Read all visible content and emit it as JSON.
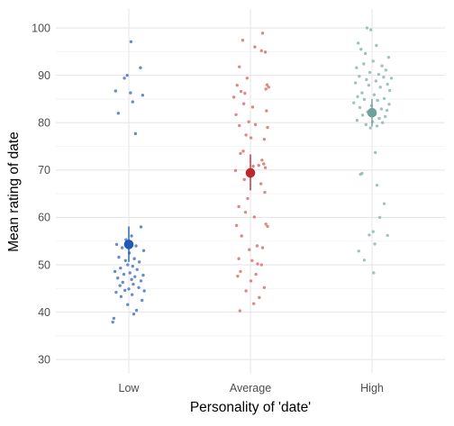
{
  "chart_data": {
    "type": "scatter",
    "xlabel": "Personality of 'date'",
    "ylabel": "Mean rating of date",
    "categories": [
      "Low",
      "Average",
      "High"
    ],
    "ylim": [
      27,
      104
    ],
    "yticks": [
      30,
      40,
      50,
      60,
      70,
      80,
      90,
      100
    ],
    "grid": true,
    "legend": "none",
    "groups": [
      {
        "category": "Low",
        "raw_color": "#4A78C6",
        "mean_color": "#1F5BB0",
        "mean": 54.3,
        "ci": [
          50.6,
          58.1
        ],
        "points": [
          {
            "dx": 0.04,
            "y": 97.1
          },
          {
            "dx": 0.21,
            "y": 91.6
          },
          {
            "dx": -0.03,
            "y": 90.0
          },
          {
            "dx": -0.08,
            "y": 89.4
          },
          {
            "dx": -0.24,
            "y": 86.7
          },
          {
            "dx": 0.03,
            "y": 86.3
          },
          {
            "dx": 0.25,
            "y": 85.8
          },
          {
            "dx": 0.07,
            "y": 84.4
          },
          {
            "dx": -0.19,
            "y": 82.0
          },
          {
            "dx": 0.12,
            "y": 77.7
          },
          {
            "dx": 0.22,
            "y": 58.0
          },
          {
            "dx": 0.05,
            "y": 56.1
          },
          {
            "dx": -0.05,
            "y": 55.3
          },
          {
            "dx": -0.22,
            "y": 54.3
          },
          {
            "dx": 0.13,
            "y": 54.0
          },
          {
            "dx": -0.12,
            "y": 53.6
          },
          {
            "dx": 0.27,
            "y": 53.0
          },
          {
            "dx": 0.01,
            "y": 52.5
          },
          {
            "dx": -0.18,
            "y": 51.6
          },
          {
            "dx": 0.1,
            "y": 51.3
          },
          {
            "dx": -0.06,
            "y": 50.9
          },
          {
            "dx": 0.19,
            "y": 50.6
          },
          {
            "dx": -0.02,
            "y": 50.0
          },
          {
            "dx": 0.07,
            "y": 49.7
          },
          {
            "dx": -0.15,
            "y": 49.3
          },
          {
            "dx": 0.15,
            "y": 49.0
          },
          {
            "dx": -0.25,
            "y": 48.6
          },
          {
            "dx": 0.02,
            "y": 48.3
          },
          {
            "dx": -0.09,
            "y": 48.0
          },
          {
            "dx": 0.26,
            "y": 47.8
          },
          {
            "dx": 0.11,
            "y": 47.5
          },
          {
            "dx": -0.2,
            "y": 47.2
          },
          {
            "dx": 0.05,
            "y": 46.9
          },
          {
            "dx": 0.22,
            "y": 46.6
          },
          {
            "dx": -0.11,
            "y": 46.3
          },
          {
            "dx": 0.08,
            "y": 45.9
          },
          {
            "dx": -0.16,
            "y": 45.6
          },
          {
            "dx": 0.18,
            "y": 45.2
          },
          {
            "dx": 0.0,
            "y": 44.9
          },
          {
            "dx": -0.07,
            "y": 44.6
          },
          {
            "dx": 0.28,
            "y": 44.5
          },
          {
            "dx": -0.23,
            "y": 44.2
          },
          {
            "dx": 0.06,
            "y": 43.7
          },
          {
            "dx": -0.14,
            "y": 43.3
          },
          {
            "dx": 0.24,
            "y": 42.5
          },
          {
            "dx": -0.02,
            "y": 41.6
          },
          {
            "dx": 0.14,
            "y": 40.4
          },
          {
            "dx": 0.09,
            "y": 39.6
          },
          {
            "dx": -0.27,
            "y": 38.7
          },
          {
            "dx": -0.29,
            "y": 37.9
          }
        ]
      },
      {
        "category": "Average",
        "raw_color": "#D9736F",
        "mean_color": "#C0272D",
        "mean": 69.4,
        "ci": [
          65.7,
          73.3
        ],
        "points": [
          {
            "dx": 0.22,
            "y": 98.9
          },
          {
            "dx": -0.14,
            "y": 97.4
          },
          {
            "dx": 0.08,
            "y": 96.0
          },
          {
            "dx": 0.2,
            "y": 95.2
          },
          {
            "dx": 0.27,
            "y": 94.9
          },
          {
            "dx": -0.2,
            "y": 91.8
          },
          {
            "dx": -0.06,
            "y": 89.4
          },
          {
            "dx": 0.3,
            "y": 88.0
          },
          {
            "dx": -0.24,
            "y": 87.9
          },
          {
            "dx": 0.33,
            "y": 87.5
          },
          {
            "dx": 0.28,
            "y": 87.1
          },
          {
            "dx": -0.17,
            "y": 86.6
          },
          {
            "dx": -0.1,
            "y": 86.2
          },
          {
            "dx": -0.3,
            "y": 85.4
          },
          {
            "dx": -0.12,
            "y": 84.0
          },
          {
            "dx": 0.04,
            "y": 83.3
          },
          {
            "dx": 0.29,
            "y": 82.5
          },
          {
            "dx": -0.26,
            "y": 81.7
          },
          {
            "dx": -0.03,
            "y": 80.2
          },
          {
            "dx": 0.09,
            "y": 79.6
          },
          {
            "dx": -0.2,
            "y": 79.4
          },
          {
            "dx": 0.31,
            "y": 79.0
          },
          {
            "dx": -0.08,
            "y": 77.4
          },
          {
            "dx": 0.01,
            "y": 76.8
          },
          {
            "dx": 0.25,
            "y": 76.5
          },
          {
            "dx": -0.13,
            "y": 74.0
          },
          {
            "dx": -0.18,
            "y": 73.5
          },
          {
            "dx": 0.21,
            "y": 72.1
          },
          {
            "dx": 0.24,
            "y": 71.3
          },
          {
            "dx": 0.15,
            "y": 71.0
          },
          {
            "dx": 0.05,
            "y": 70.8
          },
          {
            "dx": 0.27,
            "y": 70.5
          },
          {
            "dx": -0.27,
            "y": 69.9
          },
          {
            "dx": -0.11,
            "y": 68.0
          },
          {
            "dx": 0.19,
            "y": 67.1
          },
          {
            "dx": 0.26,
            "y": 65.3
          },
          {
            "dx": -0.05,
            "y": 64.0
          },
          {
            "dx": -0.21,
            "y": 62.3
          },
          {
            "dx": -0.09,
            "y": 61.1
          },
          {
            "dx": 0.07,
            "y": 60.1
          },
          {
            "dx": -0.25,
            "y": 58.3
          },
          {
            "dx": 0.28,
            "y": 58.6
          },
          {
            "dx": 0.31,
            "y": 58.1
          },
          {
            "dx": -0.16,
            "y": 56.1
          },
          {
            "dx": 0.12,
            "y": 54.0
          },
          {
            "dx": 0.22,
            "y": 53.6
          },
          {
            "dx": -0.02,
            "y": 53.2
          },
          {
            "dx": -0.21,
            "y": 51.3
          },
          {
            "dx": 0.03,
            "y": 50.9
          },
          {
            "dx": 0.13,
            "y": 50.2
          },
          {
            "dx": 0.2,
            "y": 50.0
          },
          {
            "dx": -0.18,
            "y": 48.6
          },
          {
            "dx": 0.1,
            "y": 48.0
          },
          {
            "dx": -0.23,
            "y": 47.6
          },
          {
            "dx": 0.01,
            "y": 46.6
          },
          {
            "dx": 0.25,
            "y": 45.2
          },
          {
            "dx": -0.08,
            "y": 44.5
          },
          {
            "dx": 0.16,
            "y": 43.1
          },
          {
            "dx": 0.06,
            "y": 41.8
          },
          {
            "dx": -0.19,
            "y": 40.3
          }
        ]
      },
      {
        "category": "High",
        "raw_color": "#90B9B5",
        "mean_color": "#6FA09B",
        "mean": 82.1,
        "ci": [
          79.2,
          85.0
        ],
        "points": [
          {
            "dx": -0.09,
            "y": 100.0
          },
          {
            "dx": -0.02,
            "y": 99.6
          },
          {
            "dx": -0.25,
            "y": 96.8
          },
          {
            "dx": 0.08,
            "y": 96.3
          },
          {
            "dx": -0.2,
            "y": 95.5
          },
          {
            "dx": -0.12,
            "y": 94.6
          },
          {
            "dx": 0.3,
            "y": 93.8
          },
          {
            "dx": 0.02,
            "y": 93.0
          },
          {
            "dx": -0.15,
            "y": 92.4
          },
          {
            "dx": 0.18,
            "y": 92.0
          },
          {
            "dx": -0.28,
            "y": 91.6
          },
          {
            "dx": 0.25,
            "y": 91.1
          },
          {
            "dx": -0.04,
            "y": 90.6
          },
          {
            "dx": 0.12,
            "y": 90.2
          },
          {
            "dx": -0.23,
            "y": 89.8
          },
          {
            "dx": 0.21,
            "y": 89.6
          },
          {
            "dx": 0.35,
            "y": 89.4
          },
          {
            "dx": -0.1,
            "y": 89.1
          },
          {
            "dx": 0.07,
            "y": 88.8
          },
          {
            "dx": -0.3,
            "y": 88.4
          },
          {
            "dx": 0.28,
            "y": 88.1
          },
          {
            "dx": -0.06,
            "y": 87.9
          },
          {
            "dx": 0.15,
            "y": 87.5
          },
          {
            "dx": 0.32,
            "y": 86.8
          },
          {
            "dx": -0.18,
            "y": 86.3
          },
          {
            "dx": 0.04,
            "y": 85.9
          },
          {
            "dx": -0.26,
            "y": 85.5
          },
          {
            "dx": 0.22,
            "y": 85.1
          },
          {
            "dx": -0.14,
            "y": 84.9
          },
          {
            "dx": 0.1,
            "y": 84.7
          },
          {
            "dx": -0.33,
            "y": 84.2
          },
          {
            "dx": 0.31,
            "y": 83.9
          },
          {
            "dx": -0.01,
            "y": 83.6
          },
          {
            "dx": -0.22,
            "y": 83.2
          },
          {
            "dx": 0.17,
            "y": 82.9
          },
          {
            "dx": 0.27,
            "y": 82.6
          },
          {
            "dx": -0.08,
            "y": 82.3
          },
          {
            "dx": 0.05,
            "y": 81.9
          },
          {
            "dx": -0.17,
            "y": 81.6
          },
          {
            "dx": 0.24,
            "y": 81.3
          },
          {
            "dx": 0.13,
            "y": 80.9
          },
          {
            "dx": -0.27,
            "y": 80.5
          },
          {
            "dx": 0.01,
            "y": 80.2
          },
          {
            "dx": 0.19,
            "y": 80.0
          },
          {
            "dx": -0.11,
            "y": 79.6
          },
          {
            "dx": 0.09,
            "y": 79.3
          },
          {
            "dx": -0.03,
            "y": 78.9
          },
          {
            "dx": 0.06,
            "y": 73.7
          },
          {
            "dx": -0.18,
            "y": 69.3
          },
          {
            "dx": -0.21,
            "y": 69.1
          },
          {
            "dx": 0.09,
            "y": 66.8
          },
          {
            "dx": 0.22,
            "y": 62.9
          },
          {
            "dx": 0.14,
            "y": 60.0
          },
          {
            "dx": 0.02,
            "y": 57.0
          },
          {
            "dx": -0.05,
            "y": 56.3
          },
          {
            "dx": 0.28,
            "y": 56.2
          },
          {
            "dx": 0.05,
            "y": 54.4
          },
          {
            "dx": -0.24,
            "y": 52.9
          },
          {
            "dx": -0.14,
            "y": 51.0
          },
          {
            "dx": 0.03,
            "y": 48.3
          }
        ]
      }
    ]
  },
  "colors": {
    "panel_background": "#ffffff",
    "grid_major": "#e6e6e6",
    "grid_minor": "#f2f2f2",
    "tick_text": "#4d4d4d",
    "title_text": "#000000"
  }
}
